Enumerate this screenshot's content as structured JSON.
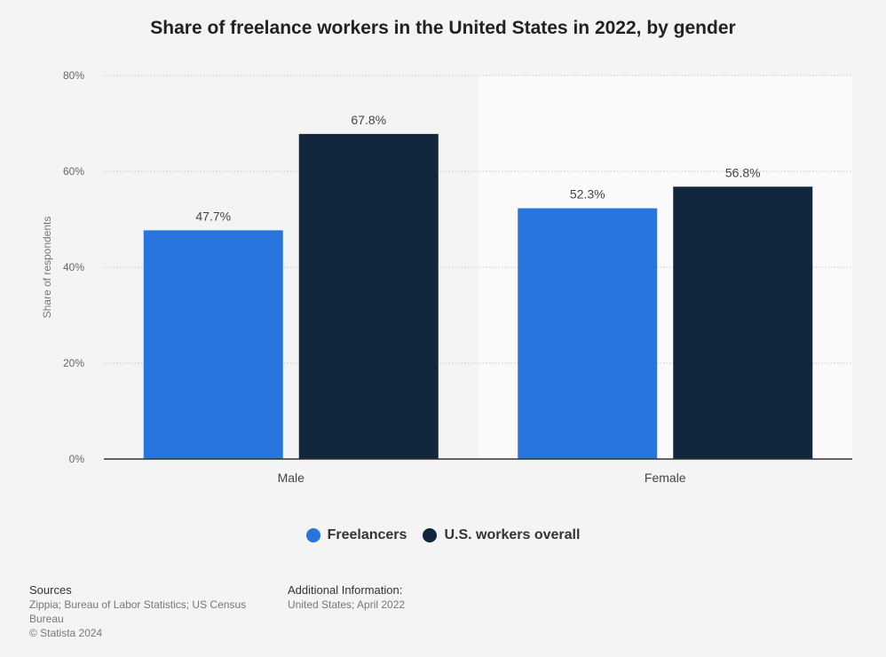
{
  "chart_data": {
    "type": "bar",
    "title": "Share of freelance workers in the United States in 2022, by gender",
    "categories": [
      "Male",
      "Female"
    ],
    "series": [
      {
        "name": "Freelancers",
        "values": [
          47.7,
          52.3
        ],
        "labels": [
          "47.7%",
          "52.3%"
        ],
        "color": "#2876dd"
      },
      {
        "name": "U.S. workers overall",
        "values": [
          67.8,
          56.8
        ],
        "labels": [
          "67.8%",
          "56.8%"
        ],
        "color": "#12263e"
      }
    ],
    "ylabel": "Share of respondents",
    "xlabel": "",
    "ylim": [
      0,
      80
    ],
    "yticks": [
      0,
      20,
      40,
      60,
      80
    ],
    "ytick_labels": [
      "0%",
      "20%",
      "40%",
      "60%",
      "80%"
    ],
    "grid": true,
    "legend": "bottom-center"
  },
  "footer": {
    "sources_title": "Sources",
    "sources_text": "Zippia; Bureau of Labor Statistics; US Census Bureau",
    "copyright": "© Statista 2024",
    "additional_title": "Additional Information:",
    "additional_text": "United States; April 2022"
  }
}
